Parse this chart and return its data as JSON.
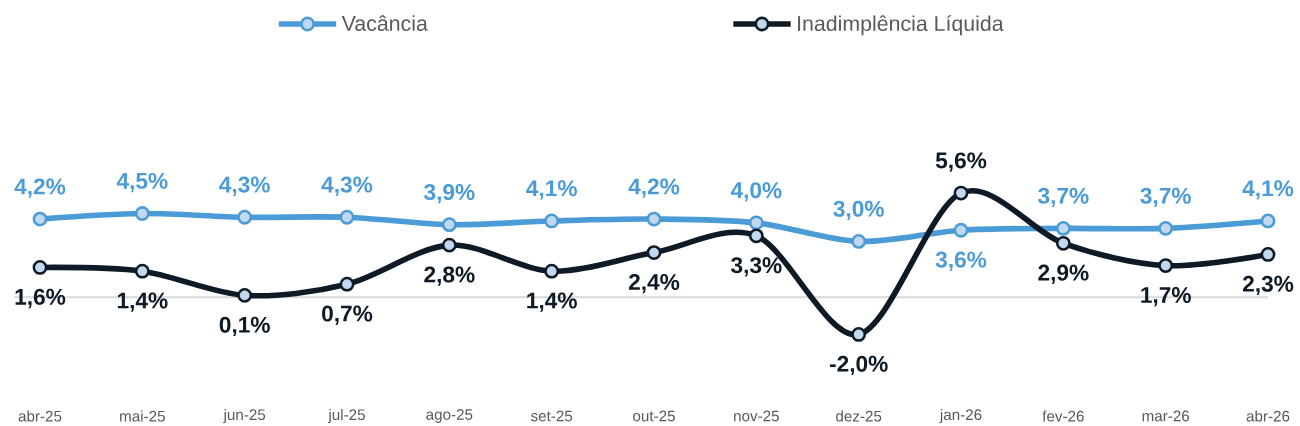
{
  "chart_data": {
    "type": "line",
    "categories": [
      "abr-25",
      "mai-25",
      "jun-25",
      "jul-25",
      "ago-25",
      "set-25",
      "out-25",
      "nov-25",
      "dez-25",
      "jan-26",
      "fev-26",
      "mar-26",
      "abr-26"
    ],
    "series": [
      {
        "name": "Vacância",
        "color": "#4a9bd6",
        "values": [
          4.2,
          4.5,
          4.3,
          4.3,
          3.9,
          4.1,
          4.2,
          4.0,
          3.0,
          3.6,
          3.7,
          3.7,
          4.1
        ],
        "value_labels": [
          "4,2%",
          "4,5%",
          "4,3%",
          "4,3%",
          "3,9%",
          "4,1%",
          "4,2%",
          "4,0%",
          "3,0%",
          "3,6%",
          "3,7%",
          "3,7%",
          "4,1%"
        ]
      },
      {
        "name": "Inadimplência Líquida",
        "color": "#0e1a26",
        "values": [
          1.6,
          1.4,
          0.1,
          0.7,
          2.8,
          1.4,
          2.4,
          3.3,
          -2.0,
          5.6,
          2.9,
          1.7,
          2.3
        ],
        "value_labels": [
          "1,6%",
          "1,4%",
          "0,1%",
          "0,7%",
          "2,8%",
          "1,4%",
          "2,4%",
          "3,3%",
          "-2,0%",
          "5,6%",
          "2,9%",
          "1,7%",
          "2,3%"
        ]
      }
    ],
    "legend": "top",
    "marker": "circle",
    "line_style": "solid",
    "ref_lines": [
      {
        "axis": "y",
        "value": 0,
        "color": "#d9d9d9"
      }
    ]
  }
}
